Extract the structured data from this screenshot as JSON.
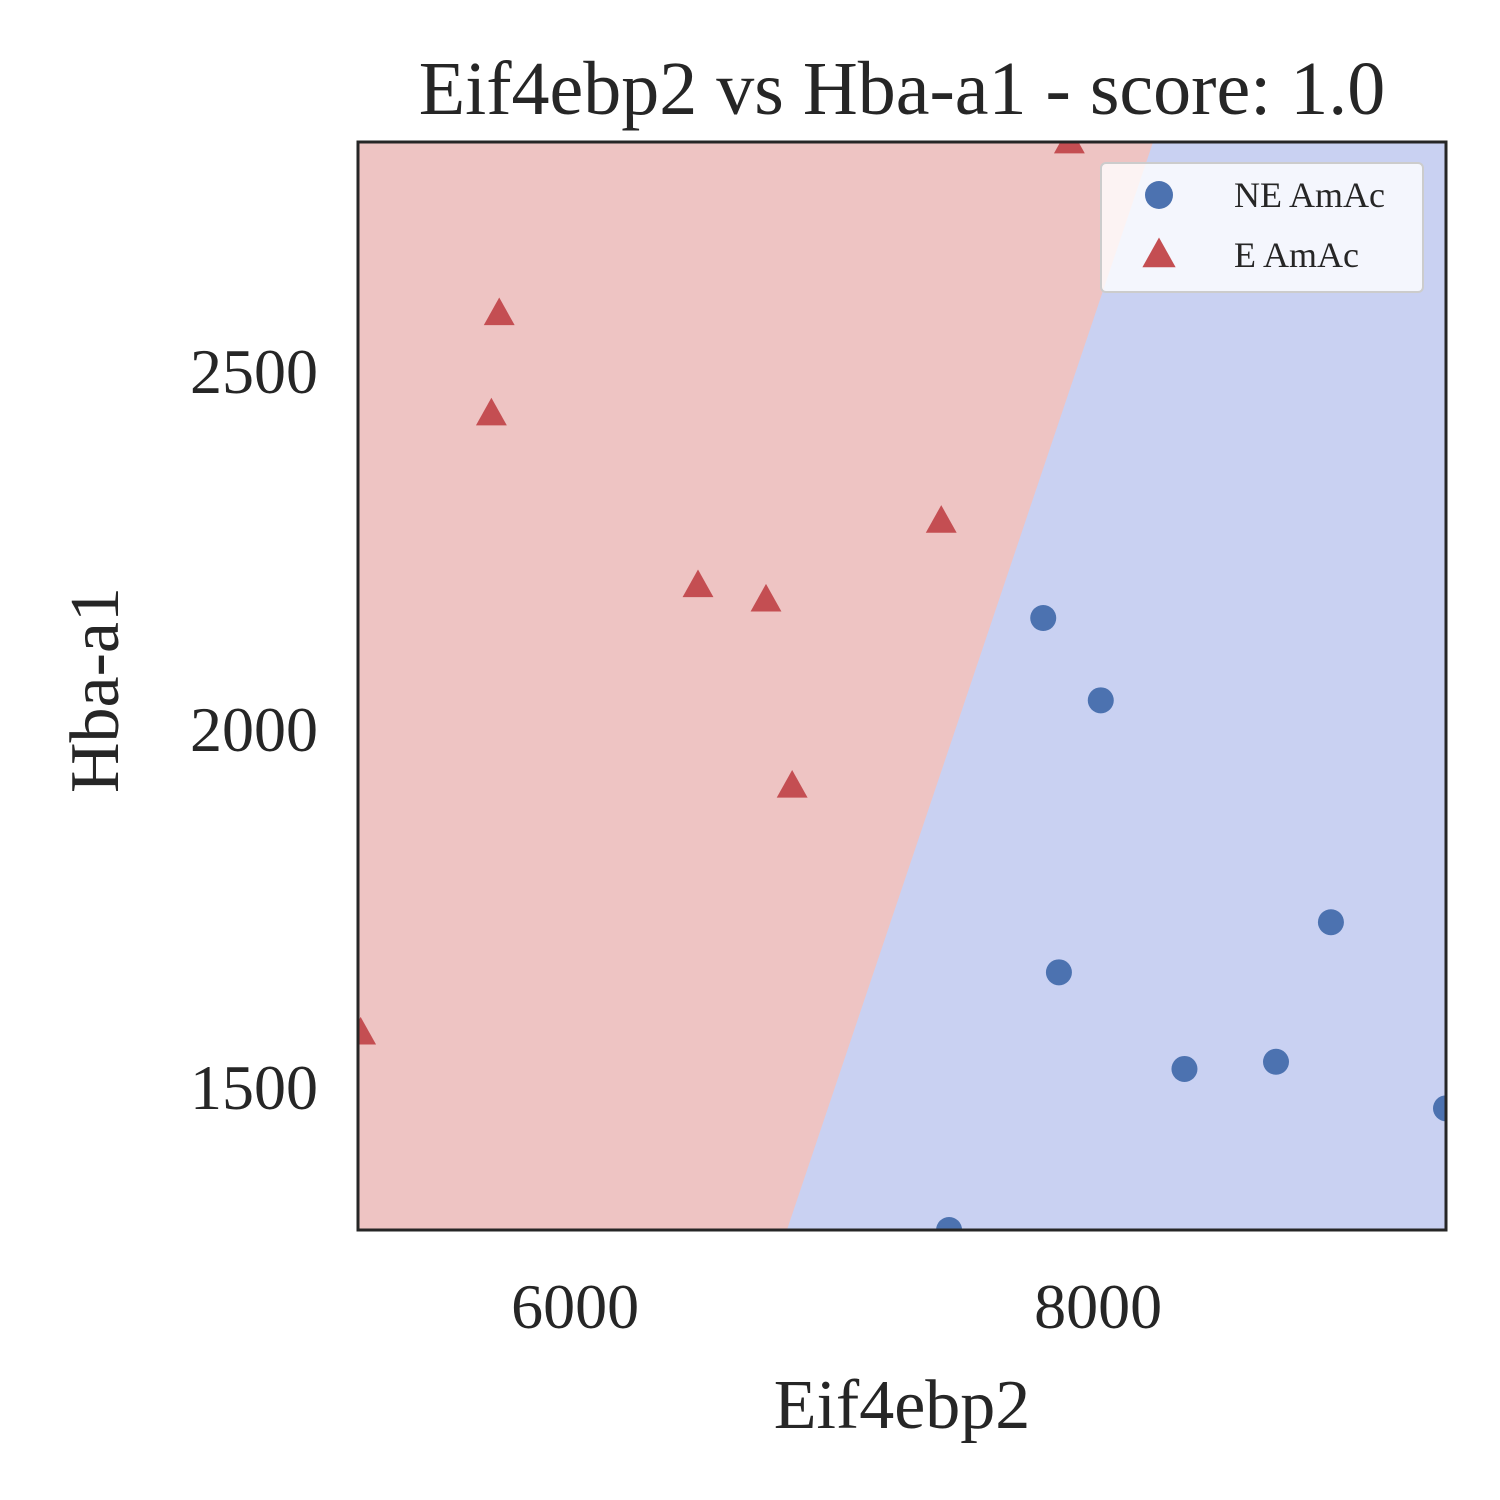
{
  "chart_data": {
    "type": "scatter",
    "title": "Eif4ebp2 vs Hba-a1 - score: 1.0",
    "xlabel": "Eif4ebp2",
    "ylabel": "Hba-a1",
    "xlim": [
      5170,
      9330
    ],
    "ylim": [
      1300,
      2820
    ],
    "xticks": [
      6000,
      8000
    ],
    "yticks": [
      1500,
      2000,
      2500
    ],
    "grid": false,
    "legend_position": "top-right",
    "decision_boundary": [
      [
        6810,
        1300
      ],
      [
        8210,
        2820
      ]
    ],
    "regions": [
      {
        "label": "E AmAc",
        "side": "left",
        "color": "#eec4c3"
      },
      {
        "label": "NE AmAc",
        "side": "right",
        "color": "#c9d1f2"
      }
    ],
    "series": [
      {
        "name": "NE AmAc",
        "marker": "circle",
        "color": "#4c72b0",
        "points": [
          [
            7790,
            2155
          ],
          [
            8010,
            2040
          ],
          [
            7850,
            1660
          ],
          [
            8330,
            1525
          ],
          [
            8680,
            1535
          ],
          [
            8890,
            1730
          ],
          [
            9330,
            1470
          ],
          [
            7430,
            1300
          ]
        ]
      },
      {
        "name": "E AmAc",
        "marker": "triangle",
        "color": "#c44e52",
        "points": [
          [
            5710,
            2580
          ],
          [
            5680,
            2440
          ],
          [
            6470,
            2200
          ],
          [
            6730,
            2180
          ],
          [
            7400,
            2290
          ],
          [
            6830,
            1920
          ],
          [
            7890,
            2820
          ],
          [
            5180,
            1575
          ]
        ]
      }
    ]
  }
}
